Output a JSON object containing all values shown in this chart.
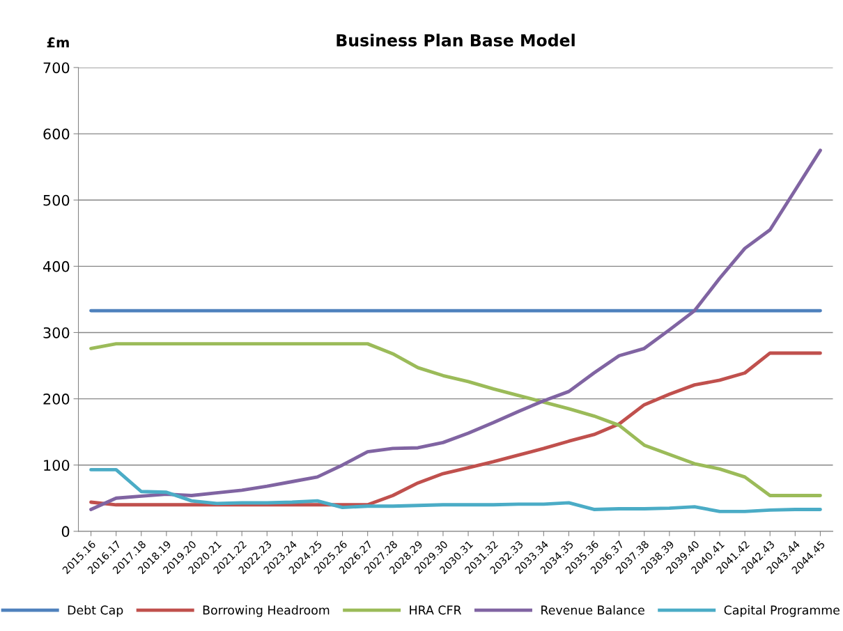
{
  "chart_data": {
    "type": "line",
    "title": "Business Plan Base Model",
    "ylabel": "£m",
    "categories": [
      "2015.16",
      "2016.17",
      "2017.18",
      "2018.19",
      "2019.20",
      "2020.21",
      "2021.22",
      "2022.23",
      "2023.24",
      "2024.25",
      "2025.26",
      "2026.27",
      "2027.28",
      "2028.29",
      "2029.30",
      "2030.31",
      "2031.32",
      "2032.33",
      "2033.34",
      "2034.35",
      "2035.36",
      "2036.37",
      "2037.38",
      "2038.39",
      "2039.40",
      "2040.41",
      "2041.42",
      "2042.43",
      "2043.44",
      "2044.45"
    ],
    "series": [
      {
        "name": "Debt Cap",
        "color": "#4f81bd",
        "values": [
          333,
          333,
          333,
          333,
          333,
          333,
          333,
          333,
          333,
          333,
          333,
          333,
          333,
          333,
          333,
          333,
          333,
          333,
          333,
          333,
          333,
          333,
          333,
          333,
          333,
          333,
          333,
          333,
          333,
          333
        ]
      },
      {
        "name": "Borrowing Headroom",
        "color": "#c0504d",
        "values": [
          44,
          40,
          40,
          40,
          40,
          40,
          40,
          40,
          40,
          40,
          40,
          40,
          54,
          73,
          87,
          96,
          105,
          115,
          125,
          136,
          146,
          162,
          191,
          207,
          221,
          228,
          239,
          269,
          269,
          269
        ]
      },
      {
        "name": "HRA CFR",
        "color": "#9bbb59",
        "values": [
          276,
          283,
          283,
          283,
          283,
          283,
          283,
          283,
          283,
          283,
          283,
          283,
          268,
          247,
          235,
          226,
          215,
          205,
          195,
          185,
          174,
          160,
          130,
          116,
          102,
          94,
          82,
          54,
          54,
          54
        ]
      },
      {
        "name": "Revenue Balance",
        "color": "#8064a2",
        "values": [
          33,
          50,
          53,
          56,
          54,
          58,
          62,
          68,
          75,
          82,
          100,
          120,
          125,
          126,
          134,
          148,
          164,
          181,
          197,
          211,
          239,
          265,
          276,
          304,
          333,
          382,
          427,
          455,
          515,
          575
        ]
      },
      {
        "name": "Capital Programme",
        "color": "#4bacc6",
        "values": [
          93,
          93,
          60,
          59,
          46,
          42,
          43,
          43,
          44,
          46,
          36,
          38,
          38,
          39,
          40,
          40,
          40,
          41,
          41,
          43,
          33,
          34,
          34,
          35,
          37,
          30,
          30,
          32,
          33,
          33
        ]
      }
    ],
    "ylim": [
      0,
      700
    ],
    "yticks": [
      0,
      100,
      200,
      300,
      400,
      500,
      600,
      700
    ],
    "grid": "y",
    "legend": "bottom",
    "marker": "none",
    "line_style": "solid"
  }
}
